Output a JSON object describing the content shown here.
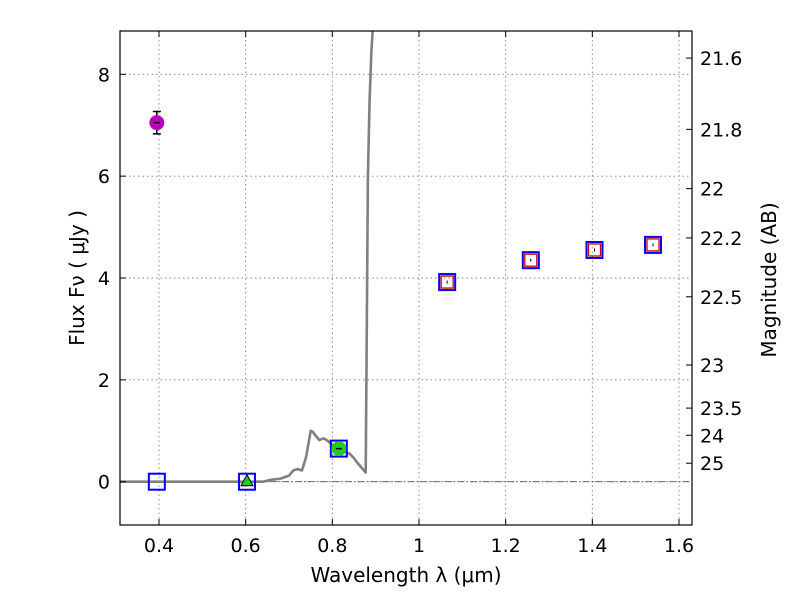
{
  "chart_data": {
    "type": "scatter",
    "xlabel": "Wavelength  λ (μm)",
    "ylabel": "Flux  Fν  ( μJy )",
    "ylabel_right": "Magnitude (AB)",
    "xlim": [
      0.31,
      1.63
    ],
    "ylim": [
      -0.85,
      8.85
    ],
    "grid": true,
    "x_ticks": [
      0.4,
      0.6,
      0.8,
      1.0,
      1.2,
      1.4,
      1.6
    ],
    "x_tick_labels": [
      "0.4",
      "0.6",
      "0.8",
      "1",
      "1.2",
      "1.4",
      "1.6"
    ],
    "y_ticks": [
      0,
      2,
      4,
      6,
      8
    ],
    "y_tick_labels": [
      "0",
      "2",
      "4",
      "6",
      "8"
    ],
    "mag_ticks": [
      21.6,
      21.8,
      22,
      22.2,
      22.5,
      23,
      23.5,
      24,
      25
    ],
    "mag_tick_labels": [
      "21.6",
      "21.8",
      "22",
      "22.2",
      "22.5",
      "23",
      "23.5",
      "24",
      "25"
    ],
    "zero_line": {
      "y": 0,
      "color": "#555555"
    },
    "model_spectrum": {
      "name": "model SED",
      "color": "#808080",
      "x": [
        0.31,
        0.64,
        0.66,
        0.68,
        0.7,
        0.71,
        0.72,
        0.73,
        0.74,
        0.745,
        0.75,
        0.755,
        0.76,
        0.77,
        0.78,
        0.79,
        0.8,
        0.81,
        0.82,
        0.83,
        0.84,
        0.85,
        0.86,
        0.87,
        0.877,
        0.879,
        0.882,
        0.886,
        0.89,
        0.893
      ],
      "y": [
        0,
        0,
        0.04,
        0.06,
        0.12,
        0.22,
        0.25,
        0.22,
        0.5,
        0.75,
        1.0,
        0.98,
        0.92,
        0.82,
        0.85,
        0.8,
        0.72,
        0.7,
        0.64,
        0.58,
        0.55,
        0.46,
        0.35,
        0.25,
        0.18,
        2.5,
        6.0,
        7.5,
        8.4,
        8.85
      ]
    },
    "series": [
      {
        "name": "model photometry",
        "marker": "open-square",
        "color": "#0000ff",
        "x": [
          0.395,
          0.603,
          0.815,
          1.065,
          1.258,
          1.405,
          1.54
        ],
        "y": [
          0.0,
          0.0,
          0.65,
          3.92,
          4.35,
          4.55,
          4.65
        ]
      },
      {
        "name": "observed flux (square)",
        "marker": "open-square-small",
        "color": "#cc0000",
        "x": [
          1.065,
          1.258,
          1.405,
          1.54
        ],
        "y": [
          3.92,
          4.35,
          4.55,
          4.65
        ]
      },
      {
        "name": "observed flux (circle)",
        "marker": "circle",
        "color": "#bb00bb",
        "x": [
          0.395
        ],
        "y": [
          7.05
        ],
        "yerr": [
          0.22
        ]
      },
      {
        "name": "observed flux (green)",
        "marker": "circle",
        "color": "#22cc22",
        "x": [
          0.815
        ],
        "y": [
          0.65
        ],
        "yerr": [
          0.06
        ]
      },
      {
        "name": "upper limit",
        "marker": "triangle",
        "color": "#22cc22",
        "x": [
          0.603
        ],
        "y": [
          0.0
        ]
      }
    ]
  }
}
